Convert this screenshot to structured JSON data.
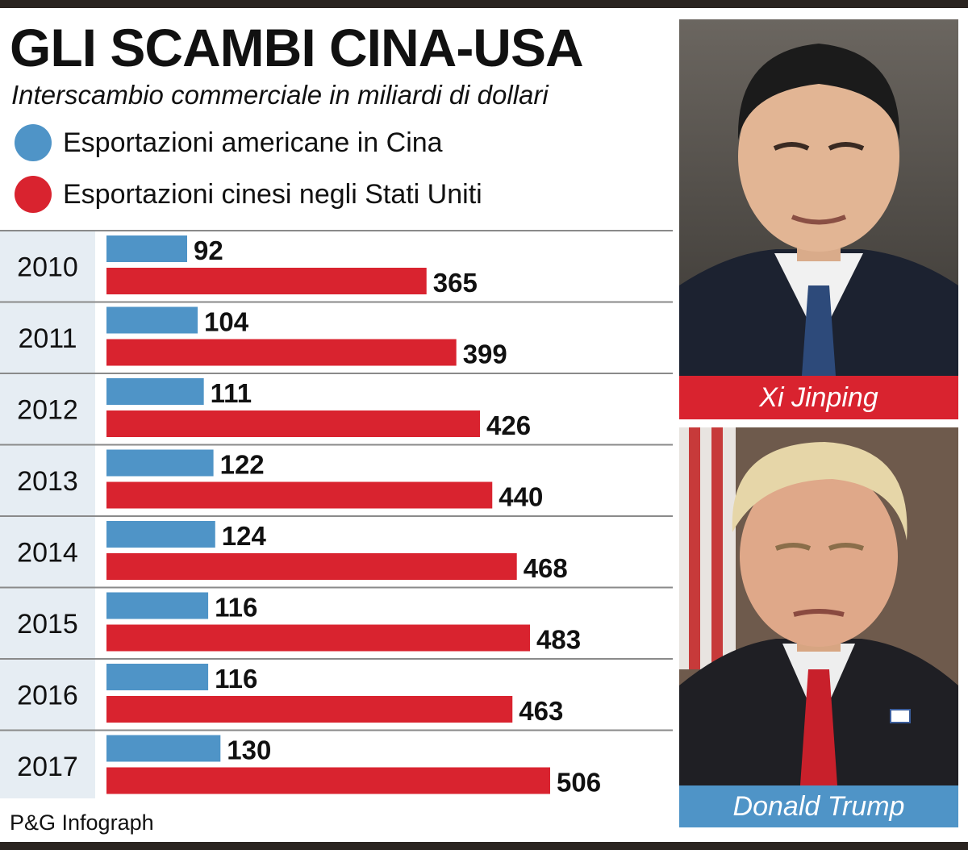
{
  "header": {
    "title": "GLI SCAMBI CINA-USA",
    "subtitle": "Interscambio commerciale in miliardi di dollari"
  },
  "legend": {
    "items": [
      {
        "label": "Esportazioni americane in Cina",
        "color": "#4f94c7"
      },
      {
        "label": "Esportazioni cinesi negli Stati Uniti",
        "color": "#d9232f"
      }
    ]
  },
  "chart_data": {
    "type": "bar",
    "orientation": "horizontal",
    "title": "GLI SCAMBI CINA-USA",
    "subtitle": "Interscambio commerciale in miliardi di dollari",
    "categories": [
      "2010",
      "2011",
      "2012",
      "2013",
      "2014",
      "2015",
      "2016",
      "2017"
    ],
    "series": [
      {
        "name": "Esportazioni americane in Cina",
        "color": "#4f94c7",
        "values": [
          92,
          104,
          111,
          122,
          124,
          116,
          116,
          130
        ]
      },
      {
        "name": "Esportazioni cinesi negli Stati Uniti",
        "color": "#d9232f",
        "values": [
          365,
          399,
          426,
          440,
          468,
          483,
          463,
          506
        ]
      }
    ],
    "xlim": [
      0,
      506
    ],
    "legend": "top-left",
    "grid": false,
    "data_labels": true
  },
  "photos": [
    {
      "caption": "Xi Jinping",
      "caption_color": "#d9232f"
    },
    {
      "caption": "Donald Trump",
      "caption_color": "#4f94c7"
    }
  ],
  "footer": {
    "source": "P&G Infograph"
  }
}
